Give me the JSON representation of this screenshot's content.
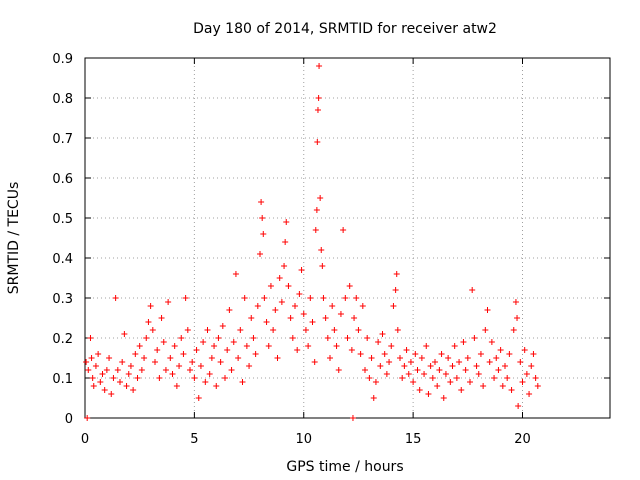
{
  "chart_data": {
    "type": "scatter",
    "title": "Day 180 of 2014, SRMTID for receiver atw2",
    "xlabel": "GPS time / hours",
    "ylabel": "SRMTID / TECUs",
    "xlim": [
      0,
      24
    ],
    "ylim": [
      0,
      0.9
    ],
    "xticks": [
      0,
      5,
      10,
      15,
      20
    ],
    "xtick_labels": [
      "0",
      "5",
      "10",
      "15",
      "20"
    ],
    "yticks": [
      0,
      0.1,
      0.2,
      0.3,
      0.4,
      0.5,
      0.6,
      0.7,
      0.8,
      0.9
    ],
    "ytick_labels": [
      "0",
      "0.1",
      "0.2",
      "0.3",
      "0.4",
      "0.5",
      "0.6",
      "0.7",
      "0.8",
      "0.9"
    ],
    "grid": true,
    "marker": "+",
    "color": "#ff0000",
    "series": [
      {
        "name": "SRMTID",
        "points": [
          [
            0.05,
            0.14
          ],
          [
            0.1,
            0.0
          ],
          [
            0.15,
            0.12
          ],
          [
            0.25,
            0.2
          ],
          [
            0.3,
            0.15
          ],
          [
            0.35,
            0.1
          ],
          [
            0.4,
            0.08
          ],
          [
            0.5,
            0.13
          ],
          [
            0.6,
            0.16
          ],
          [
            0.7,
            0.09
          ],
          [
            0.8,
            0.11
          ],
          [
            0.9,
            0.07
          ],
          [
            1.0,
            0.12
          ],
          [
            1.1,
            0.15
          ],
          [
            1.2,
            0.06
          ],
          [
            1.3,
            0.1
          ],
          [
            1.4,
            0.3
          ],
          [
            1.5,
            0.12
          ],
          [
            1.6,
            0.09
          ],
          [
            1.7,
            0.14
          ],
          [
            1.8,
            0.21
          ],
          [
            1.9,
            0.08
          ],
          [
            2.0,
            0.11
          ],
          [
            2.1,
            0.13
          ],
          [
            2.2,
            0.07
          ],
          [
            2.3,
            0.16
          ],
          [
            2.4,
            0.1
          ],
          [
            2.5,
            0.18
          ],
          [
            2.6,
            0.12
          ],
          [
            2.7,
            0.15
          ],
          [
            2.8,
            0.2
          ],
          [
            2.9,
            0.24
          ],
          [
            3.0,
            0.28
          ],
          [
            3.1,
            0.22
          ],
          [
            3.2,
            0.14
          ],
          [
            3.3,
            0.17
          ],
          [
            3.4,
            0.1
          ],
          [
            3.5,
            0.25
          ],
          [
            3.6,
            0.19
          ],
          [
            3.7,
            0.12
          ],
          [
            3.8,
            0.29
          ],
          [
            3.9,
            0.15
          ],
          [
            4.0,
            0.11
          ],
          [
            4.1,
            0.18
          ],
          [
            4.2,
            0.08
          ],
          [
            4.3,
            0.13
          ],
          [
            4.4,
            0.2
          ],
          [
            4.5,
            0.16
          ],
          [
            4.6,
            0.3
          ],
          [
            4.7,
            0.22
          ],
          [
            4.8,
            0.12
          ],
          [
            4.9,
            0.14
          ],
          [
            5.0,
            0.1
          ],
          [
            5.1,
            0.17
          ],
          [
            5.2,
            0.05
          ],
          [
            5.3,
            0.13
          ],
          [
            5.4,
            0.19
          ],
          [
            5.5,
            0.09
          ],
          [
            5.6,
            0.22
          ],
          [
            5.7,
            0.11
          ],
          [
            5.8,
            0.15
          ],
          [
            5.9,
            0.18
          ],
          [
            6.0,
            0.08
          ],
          [
            6.1,
            0.2
          ],
          [
            6.2,
            0.14
          ],
          [
            6.3,
            0.23
          ],
          [
            6.4,
            0.1
          ],
          [
            6.5,
            0.17
          ],
          [
            6.6,
            0.27
          ],
          [
            6.7,
            0.12
          ],
          [
            6.8,
            0.19
          ],
          [
            6.9,
            0.36
          ],
          [
            7.0,
            0.15
          ],
          [
            7.1,
            0.22
          ],
          [
            7.2,
            0.09
          ],
          [
            7.3,
            0.3
          ],
          [
            7.4,
            0.18
          ],
          [
            7.5,
            0.13
          ],
          [
            7.6,
            0.25
          ],
          [
            7.7,
            0.2
          ],
          [
            7.8,
            0.16
          ],
          [
            7.9,
            0.28
          ],
          [
            8.0,
            0.41
          ],
          [
            8.05,
            0.54
          ],
          [
            8.1,
            0.5
          ],
          [
            8.15,
            0.46
          ],
          [
            8.2,
            0.3
          ],
          [
            8.3,
            0.24
          ],
          [
            8.4,
            0.18
          ],
          [
            8.5,
            0.33
          ],
          [
            8.6,
            0.22
          ],
          [
            8.7,
            0.27
          ],
          [
            8.8,
            0.15
          ],
          [
            8.9,
            0.35
          ],
          [
            9.0,
            0.29
          ],
          [
            9.1,
            0.38
          ],
          [
            9.15,
            0.44
          ],
          [
            9.2,
            0.49
          ],
          [
            9.3,
            0.33
          ],
          [
            9.4,
            0.25
          ],
          [
            9.5,
            0.2
          ],
          [
            9.6,
            0.28
          ],
          [
            9.7,
            0.17
          ],
          [
            9.8,
            0.31
          ],
          [
            9.9,
            0.37
          ],
          [
            10.0,
            0.26
          ],
          [
            10.1,
            0.22
          ],
          [
            10.2,
            0.18
          ],
          [
            10.3,
            0.3
          ],
          [
            10.4,
            0.24
          ],
          [
            10.5,
            0.14
          ],
          [
            10.55,
            0.47
          ],
          [
            10.6,
            0.52
          ],
          [
            10.62,
            0.69
          ],
          [
            10.65,
            0.77
          ],
          [
            10.68,
            0.8
          ],
          [
            10.7,
            0.88
          ],
          [
            10.75,
            0.55
          ],
          [
            10.8,
            0.42
          ],
          [
            10.85,
            0.38
          ],
          [
            10.9,
            0.3
          ],
          [
            11.0,
            0.25
          ],
          [
            11.1,
            0.2
          ],
          [
            11.2,
            0.15
          ],
          [
            11.3,
            0.28
          ],
          [
            11.4,
            0.22
          ],
          [
            11.5,
            0.18
          ],
          [
            11.6,
            0.12
          ],
          [
            11.7,
            0.26
          ],
          [
            11.8,
            0.47
          ],
          [
            11.9,
            0.3
          ],
          [
            12.0,
            0.2
          ],
          [
            12.1,
            0.33
          ],
          [
            12.2,
            0.17
          ],
          [
            12.25,
            0.0
          ],
          [
            12.3,
            0.25
          ],
          [
            12.4,
            0.3
          ],
          [
            12.5,
            0.22
          ],
          [
            12.6,
            0.16
          ],
          [
            12.7,
            0.28
          ],
          [
            12.8,
            0.12
          ],
          [
            12.9,
            0.2
          ],
          [
            13.0,
            0.1
          ],
          [
            13.1,
            0.15
          ],
          [
            13.2,
            0.05
          ],
          [
            13.3,
            0.09
          ],
          [
            13.4,
            0.19
          ],
          [
            13.5,
            0.13
          ],
          [
            13.6,
            0.21
          ],
          [
            13.7,
            0.16
          ],
          [
            13.8,
            0.11
          ],
          [
            13.9,
            0.14
          ],
          [
            14.0,
            0.18
          ],
          [
            14.1,
            0.28
          ],
          [
            14.2,
            0.32
          ],
          [
            14.25,
            0.36
          ],
          [
            14.3,
            0.22
          ],
          [
            14.4,
            0.15
          ],
          [
            14.5,
            0.1
          ],
          [
            14.6,
            0.13
          ],
          [
            14.7,
            0.17
          ],
          [
            14.8,
            0.11
          ],
          [
            14.9,
            0.14
          ],
          [
            15.0,
            0.09
          ],
          [
            15.1,
            0.16
          ],
          [
            15.2,
            0.12
          ],
          [
            15.3,
            0.07
          ],
          [
            15.4,
            0.15
          ],
          [
            15.5,
            0.11
          ],
          [
            15.6,
            0.18
          ],
          [
            15.7,
            0.06
          ],
          [
            15.8,
            0.13
          ],
          [
            15.9,
            0.1
          ],
          [
            16.0,
            0.14
          ],
          [
            16.1,
            0.08
          ],
          [
            16.2,
            0.12
          ],
          [
            16.3,
            0.16
          ],
          [
            16.4,
            0.05
          ],
          [
            16.5,
            0.11
          ],
          [
            16.6,
            0.15
          ],
          [
            16.7,
            0.09
          ],
          [
            16.8,
            0.13
          ],
          [
            16.9,
            0.18
          ],
          [
            17.0,
            0.1
          ],
          [
            17.1,
            0.14
          ],
          [
            17.2,
            0.07
          ],
          [
            17.3,
            0.19
          ],
          [
            17.4,
            0.12
          ],
          [
            17.5,
            0.15
          ],
          [
            17.6,
            0.09
          ],
          [
            17.7,
            0.32
          ],
          [
            17.8,
            0.2
          ],
          [
            17.9,
            0.13
          ],
          [
            18.0,
            0.11
          ],
          [
            18.1,
            0.16
          ],
          [
            18.2,
            0.08
          ],
          [
            18.3,
            0.22
          ],
          [
            18.4,
            0.27
          ],
          [
            18.5,
            0.14
          ],
          [
            18.6,
            0.19
          ],
          [
            18.7,
            0.1
          ],
          [
            18.8,
            0.15
          ],
          [
            18.9,
            0.12
          ],
          [
            19.0,
            0.17
          ],
          [
            19.1,
            0.08
          ],
          [
            19.2,
            0.13
          ],
          [
            19.3,
            0.1
          ],
          [
            19.4,
            0.16
          ],
          [
            19.5,
            0.07
          ],
          [
            19.6,
            0.22
          ],
          [
            19.7,
            0.29
          ],
          [
            19.75,
            0.25
          ],
          [
            19.8,
            0.03
          ],
          [
            19.9,
            0.14
          ],
          [
            20.0,
            0.09
          ],
          [
            20.1,
            0.17
          ],
          [
            20.2,
            0.11
          ],
          [
            20.3,
            0.06
          ],
          [
            20.4,
            0.13
          ],
          [
            20.5,
            0.16
          ],
          [
            20.6,
            0.1
          ],
          [
            20.7,
            0.08
          ]
        ]
      }
    ]
  }
}
